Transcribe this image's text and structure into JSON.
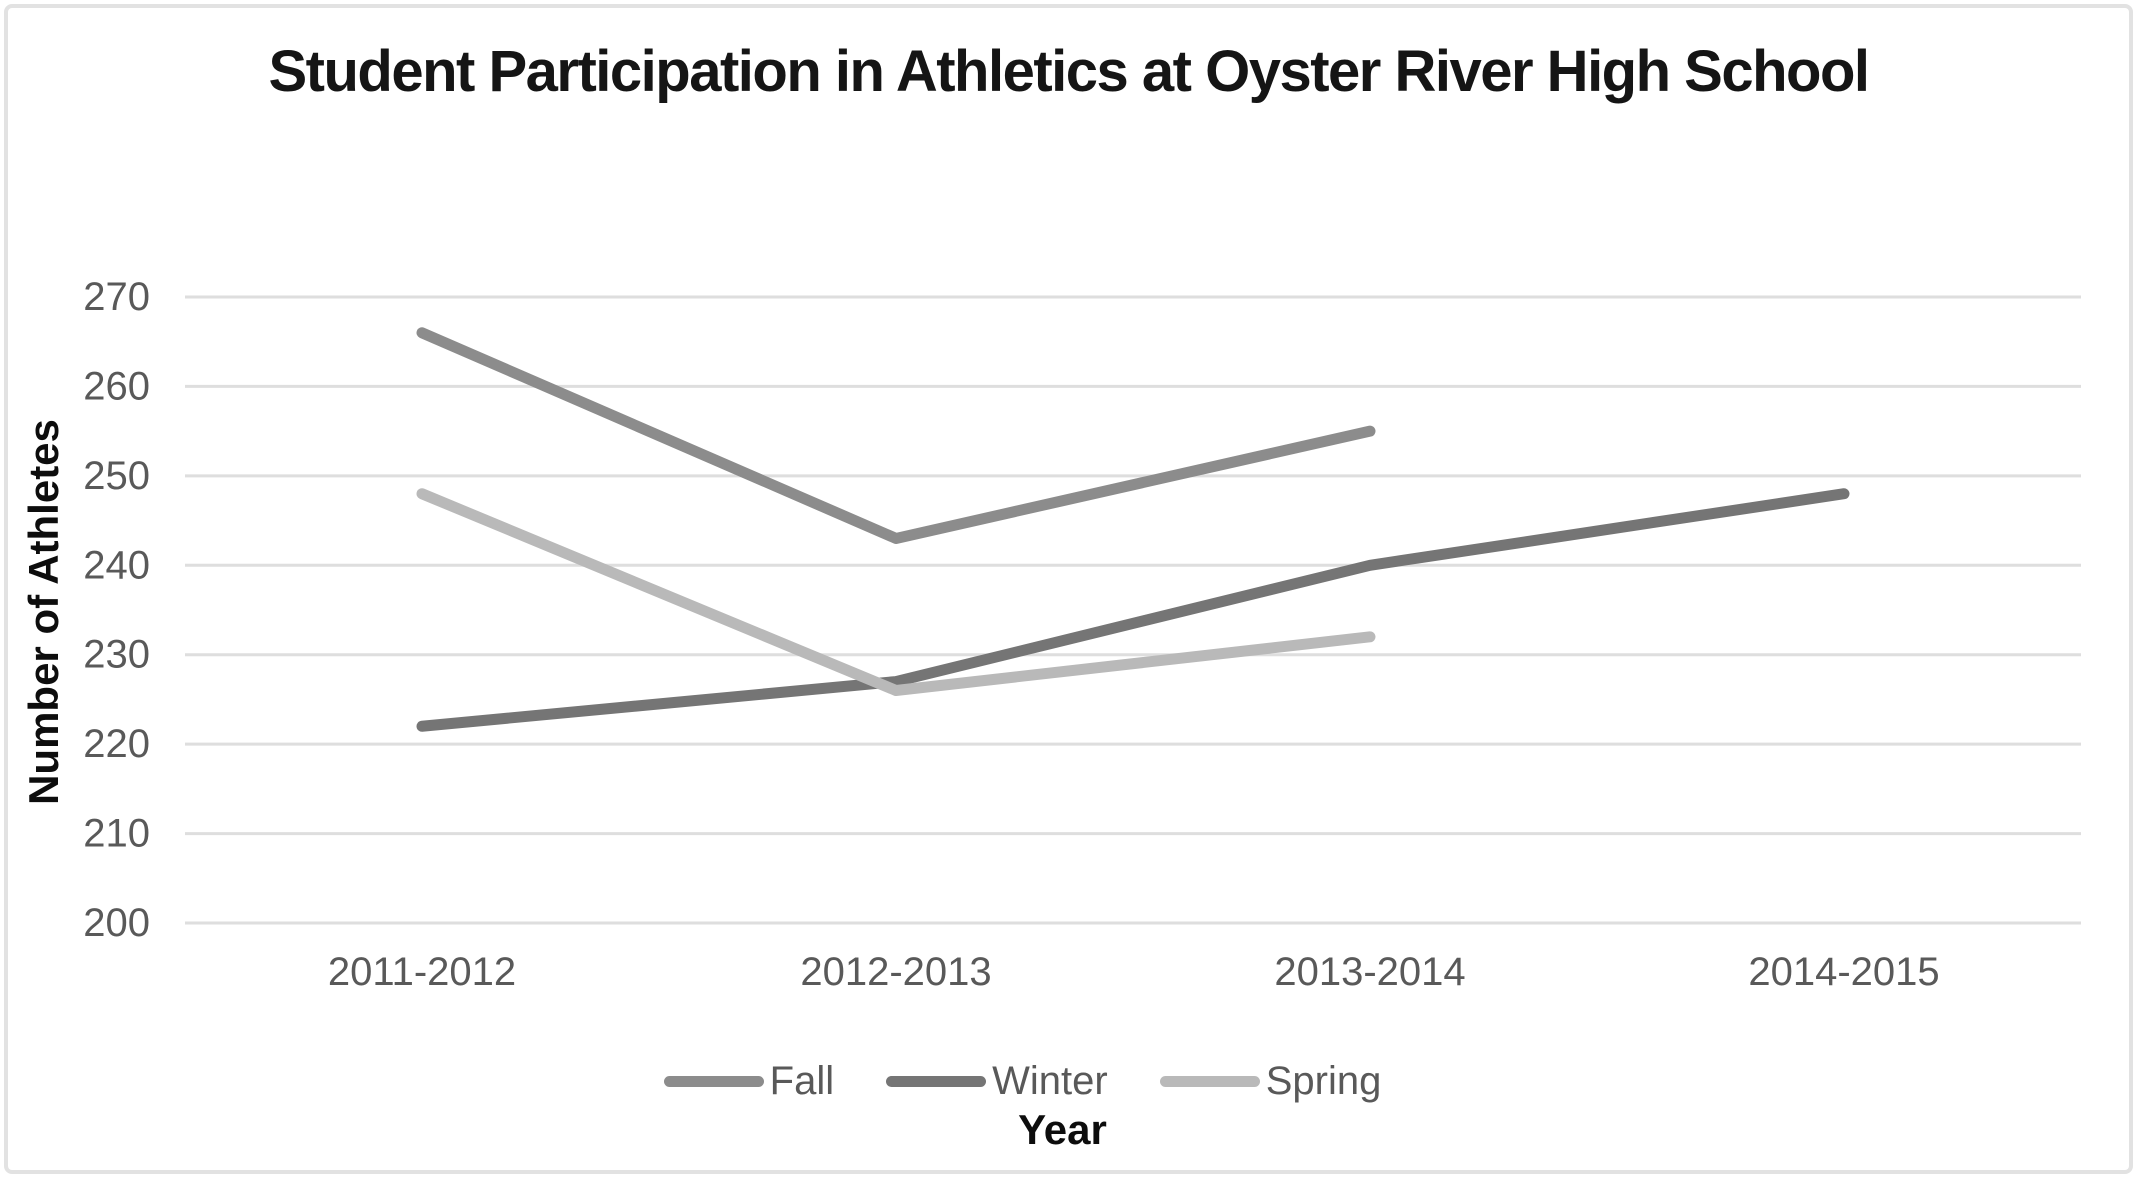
{
  "chart_data": {
    "type": "line",
    "title": "Student Participation in Athletics at Oyster River High School",
    "xlabel": "Year",
    "ylabel": "Number of Athletes",
    "categories": [
      "2011-2012",
      "2012-2013",
      "2013-2014",
      "2014-2015"
    ],
    "series": [
      {
        "name": "Fall",
        "color": "#8c8c8c",
        "values": [
          266,
          243,
          255,
          null
        ]
      },
      {
        "name": "Winter",
        "color": "#757575",
        "values": [
          222,
          227,
          240,
          248
        ]
      },
      {
        "name": "Spring",
        "color": "#b9b9b9",
        "values": [
          248,
          226,
          232,
          null
        ]
      }
    ],
    "ylim": [
      200,
      270
    ],
    "ytick_step": 10,
    "ytick_labels": [
      "200",
      "210",
      "220",
      "230",
      "240",
      "250",
      "260",
      "270"
    ],
    "grid": true,
    "legend_position": "bottom",
    "colors": {
      "gridline": "#dedede",
      "tick_label": "#595959",
      "legend_label": "#595959",
      "title_text": "#151515",
      "frame_border": "#e2e2e2"
    }
  }
}
